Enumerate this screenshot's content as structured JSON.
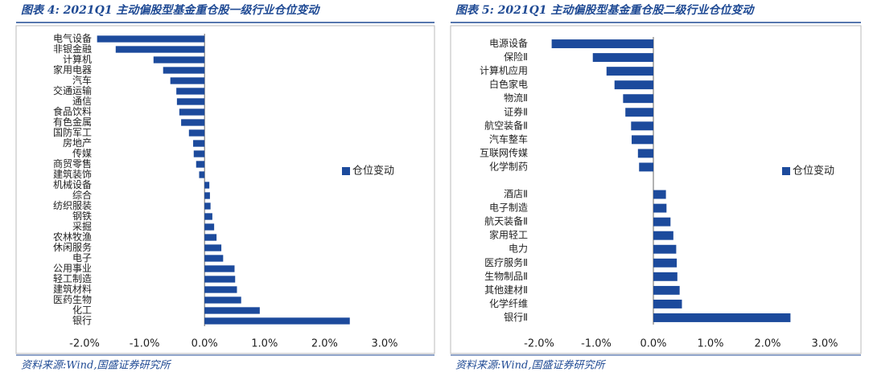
{
  "chart_data": [
    {
      "type": "bar",
      "orientation": "horizontal",
      "title": "图表 4:  2021Q1 主动偏股型基金重仓股一级行业仓位变动",
      "source": "资料来源:Wind,国盛证券研究所",
      "categories": [
        "电气设备",
        "非银金融",
        "计算机",
        "家用电器",
        "汽车",
        "交通运输",
        "通信",
        "食品饮料",
        "有色金属",
        "国防军工",
        "房地产",
        "传媒",
        "商贸零售",
        "建筑装饰",
        "机械设备",
        "综合",
        "纺织服装",
        "钢铁",
        "采掘",
        "农林牧渔",
        "休闲服务",
        "电子",
        "公用事业",
        "轻工制造",
        "建筑材料",
        "医药生物",
        "化工",
        "银行"
      ],
      "series": [
        {
          "name": "仓位变动",
          "color": "#1c4a9c",
          "values": [
            -1.79,
            -1.48,
            -0.85,
            -0.69,
            -0.57,
            -0.47,
            -0.46,
            -0.42,
            -0.39,
            -0.26,
            -0.19,
            -0.18,
            -0.14,
            -0.09,
            0.08,
            0.09,
            0.1,
            0.13,
            0.16,
            0.2,
            0.28,
            0.31,
            0.5,
            0.51,
            0.54,
            0.61,
            0.92,
            2.42
          ]
        }
      ],
      "xlim": [
        -2,
        3
      ],
      "xticks": [
        {
          "value": -2,
          "label": "-2.0%"
        },
        {
          "value": -1,
          "label": "-1.0%"
        },
        {
          "value": 0,
          "label": "0.0%"
        },
        {
          "value": 1,
          "label": "1.0%"
        },
        {
          "value": 2,
          "label": "2.0%"
        },
        {
          "value": 3,
          "label": "3.0%"
        }
      ],
      "legend": "right"
    },
    {
      "type": "bar",
      "orientation": "horizontal",
      "title": "图表 5:  2021Q1 主动偏股型基金重仓股二级行业仓位变动",
      "source": "资料来源:Wind,国盛证券研究所",
      "categories": [
        "电源设备",
        "保险Ⅱ",
        "计算机应用",
        "白色家电",
        "物流Ⅱ",
        "证券Ⅱ",
        "航空装备Ⅱ",
        "汽车整车",
        "互联网传媒",
        "化学制药",
        null,
        "酒店Ⅱ",
        "电子制造",
        "航天装备Ⅱ",
        "家用轻工",
        "电力",
        "医疗服务Ⅱ",
        "生物制品Ⅱ",
        "其他建材Ⅱ",
        "化学纤维",
        "银行Ⅱ"
      ],
      "series": [
        {
          "name": "仓位变动",
          "color": "#1c4a9c",
          "values": [
            -1.78,
            -1.06,
            -0.82,
            -0.68,
            -0.53,
            -0.49,
            -0.39,
            -0.38,
            -0.27,
            -0.25,
            null,
            0.22,
            0.23,
            0.3,
            0.35,
            0.4,
            0.41,
            0.42,
            0.46,
            0.5,
            2.4
          ]
        }
      ],
      "xlim": [
        -2,
        3
      ],
      "xticks": [
        {
          "value": -2,
          "label": "-2.0%"
        },
        {
          "value": -1,
          "label": "-1.0%"
        },
        {
          "value": 0,
          "label": "0.0%"
        },
        {
          "value": 1,
          "label": "1.0%"
        },
        {
          "value": 2,
          "label": "2.0%"
        },
        {
          "value": 3,
          "label": "3.0%"
        }
      ],
      "legend": "right"
    }
  ]
}
